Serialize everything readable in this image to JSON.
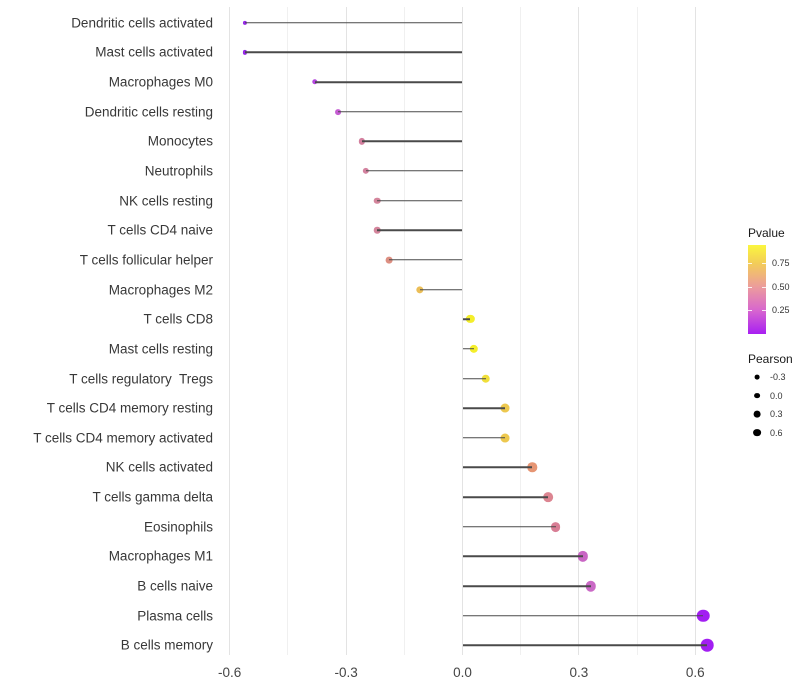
{
  "chart_data": {
    "type": "scatter",
    "subtype": "lollipop",
    "title": "",
    "xlabel": "",
    "ylabel": "",
    "x_tick_labels": [
      "-0.6",
      "-0.3",
      "0.0",
      "0.3",
      "0.6"
    ],
    "x_ticks": [
      -0.6,
      -0.3,
      0.0,
      0.3,
      0.6
    ],
    "x_minor_ticks": [
      -0.45,
      -0.15,
      0.15,
      0.45
    ],
    "xlim": [
      -0.66,
      0.7
    ],
    "baseline": 0,
    "grid": "vertical-only",
    "rows": [
      {
        "label": "Dendritic cells activated",
        "pearson": -0.56,
        "pvalue_est": 0.03,
        "color": "#9629E8"
      },
      {
        "label": "Mast cells activated",
        "pearson": -0.56,
        "pvalue_est": 0.03,
        "color": "#9629E8"
      },
      {
        "label": "Macrophages M0",
        "pearson": -0.38,
        "pvalue_est": 0.13,
        "color": "#B446DF"
      },
      {
        "label": "Dendritic cells resting",
        "pearson": -0.32,
        "pvalue_est": 0.22,
        "color": "#C55CD2"
      },
      {
        "label": "Monocytes",
        "pearson": -0.26,
        "pvalue_est": 0.45,
        "color": "#D37F9E"
      },
      {
        "label": "Neutrophils",
        "pearson": -0.25,
        "pvalue_est": 0.46,
        "color": "#D3829F"
      },
      {
        "label": "NK cells resting",
        "pearson": -0.22,
        "pvalue_est": 0.48,
        "color": "#D4859C"
      },
      {
        "label": "T cells CD4 naive",
        "pearson": -0.22,
        "pvalue_est": 0.48,
        "color": "#D4859C"
      },
      {
        "label": "T cells follicular helper",
        "pearson": -0.19,
        "pvalue_est": 0.57,
        "color": "#DD8F82"
      },
      {
        "label": "Macrophages M2",
        "pearson": -0.11,
        "pvalue_est": 0.76,
        "color": "#EBBE57"
      },
      {
        "label": "T cells CD8",
        "pearson": 0.02,
        "pvalue_est": 0.93,
        "color": "#F4EE2B"
      },
      {
        "label": "Mast cells resting",
        "pearson": 0.03,
        "pvalue_est": 0.93,
        "color": "#F4EE2B"
      },
      {
        "label": "T cells regulatory  Tregs",
        "pearson": 0.06,
        "pvalue_est": 0.87,
        "color": "#F0DF3A"
      },
      {
        "label": "T cells CD4 memory resting",
        "pearson": 0.11,
        "pvalue_est": 0.79,
        "color": "#EDC84E"
      },
      {
        "label": "T cells CD4 memory activated",
        "pearson": 0.11,
        "pvalue_est": 0.79,
        "color": "#EDC84E"
      },
      {
        "label": "NK cells activated",
        "pearson": 0.18,
        "pvalue_est": 0.62,
        "color": "#E69573"
      },
      {
        "label": "T cells gamma delta",
        "pearson": 0.22,
        "pvalue_est": 0.5,
        "color": "#DC8591"
      },
      {
        "label": "Eosinophils",
        "pearson": 0.24,
        "pvalue_est": 0.47,
        "color": "#D87E95"
      },
      {
        "label": "Macrophages M1",
        "pearson": 0.31,
        "pvalue_est": 0.27,
        "color": "#C966C4"
      },
      {
        "label": "B cells naive",
        "pearson": 0.33,
        "pvalue_est": 0.28,
        "color": "#CA69C6"
      },
      {
        "label": "Plasma cells",
        "pearson": 0.62,
        "pvalue_est": 0.02,
        "color": "#A21EF2"
      },
      {
        "label": "B cells memory",
        "pearson": 0.63,
        "pvalue_est": 0.02,
        "color": "#A21EF2"
      }
    ],
    "legend_position": "right",
    "legends": {
      "pvalue": {
        "title": "Pvalue",
        "tick_labels": [
          "0.75",
          "0.50",
          "0.25"
        ],
        "gradient_low_color": "#A81FF2",
        "gradient_high_color": "#FBF63E"
      },
      "pearson": {
        "title": "Pearson",
        "entries": [
          "-0.3",
          "0.0",
          "0.3",
          "0.6"
        ]
      }
    }
  }
}
